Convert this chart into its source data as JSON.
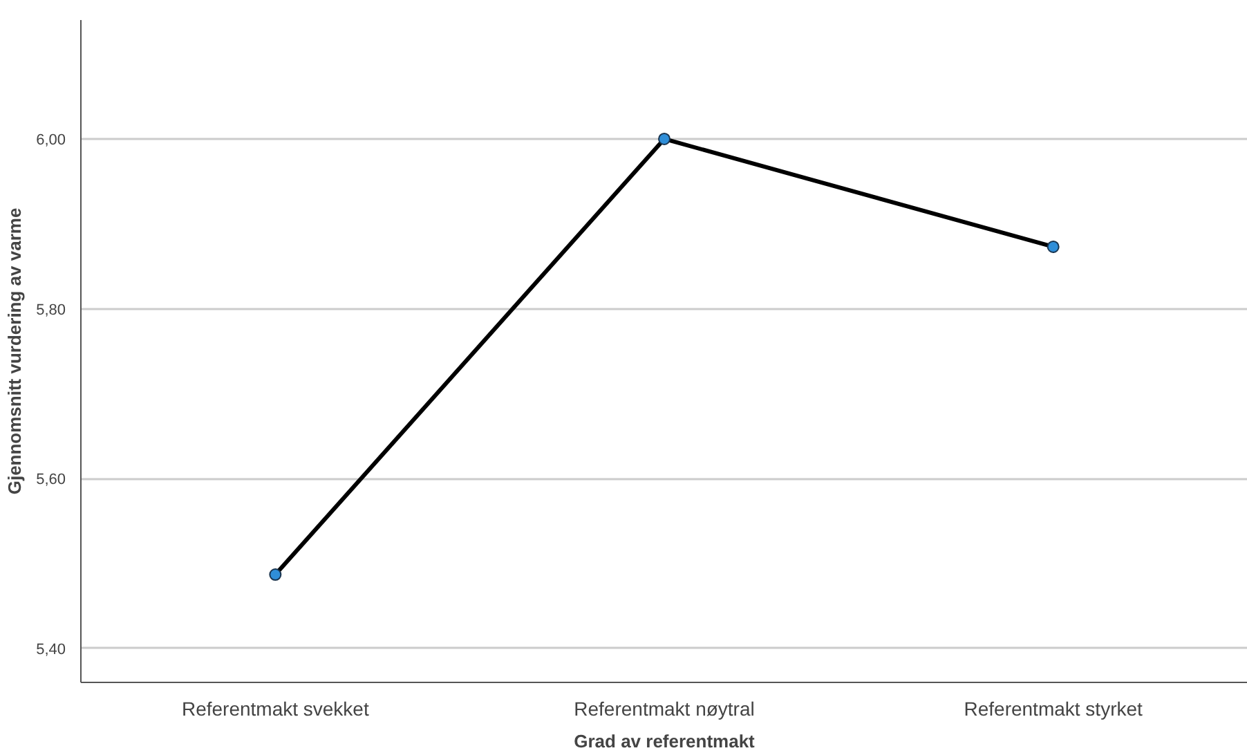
{
  "chart_data": {
    "type": "line",
    "xlabel": "Grad av referentmakt",
    "ylabel": "Gjennomsnitt vurdering av varme",
    "categories": [
      "Referentmakt svekket",
      "Referentmakt nøytral",
      "Referentmakt styrket"
    ],
    "series": [
      {
        "color": "#000000",
        "values": [
          5.487,
          6.0,
          5.873
        ]
      }
    ],
    "ylim": [
      5.36,
      6.14
    ],
    "yticks": [
      {
        "value": 5.4,
        "label": "5,40"
      },
      {
        "value": 5.6,
        "label": "5,60"
      },
      {
        "value": 5.8,
        "label": "5,80"
      },
      {
        "value": 6.0,
        "label": "6,00"
      }
    ],
    "grid": "y",
    "marker": "circle",
    "line_style": "solid"
  }
}
